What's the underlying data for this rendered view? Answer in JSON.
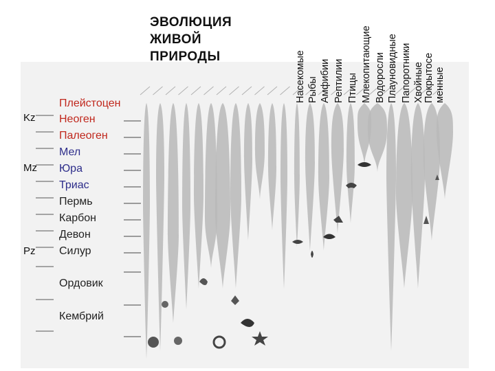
{
  "title": {
    "line1": "ЭВОЛЮЦИЯ",
    "line2": "ЖИВОЙ",
    "line3": "ПРИРОДЫ"
  },
  "eras": [
    {
      "code": "Kz"
    },
    {
      "code": "Mz"
    },
    {
      "code": "Pz"
    }
  ],
  "periods": [
    {
      "name": "Плейстоцен",
      "color": "red"
    },
    {
      "name": "Неоген",
      "color": "red"
    },
    {
      "name": "Палеоген",
      "color": "red"
    },
    {
      "name": "Мел",
      "color": "blue"
    },
    {
      "name": "Юра",
      "color": "blue"
    },
    {
      "name": "Триас",
      "color": "blue"
    },
    {
      "name": "Пермь",
      "color": "dark"
    },
    {
      "name": "Карбон",
      "color": "dark"
    },
    {
      "name": "Девон",
      "color": "dark"
    },
    {
      "name": "Силур",
      "color": "dark"
    },
    {
      "name": "Ордовик",
      "color": "dark"
    },
    {
      "name": "Кембрий",
      "color": "dark"
    }
  ],
  "groups": [
    "Насекомые",
    "Рыбы",
    "Амфибии",
    "Рептилии",
    "Птицы",
    "Млекопитающие",
    "Водоросли",
    "Плауновидные",
    "Папоротники",
    "Хвойные",
    "Покрытосе",
    "менные"
  ],
  "colors": {
    "red": "#c0271c",
    "blue": "#2d2d8a",
    "panel": "#f2f2f2",
    "band": "#b8b8b8"
  },
  "icons": [
    "shell-icon",
    "ammonite-icon",
    "starfish-icon",
    "coral-icon",
    "fish-icon",
    "frog-icon",
    "lizard-icon",
    "bird-icon",
    "mammal-icon",
    "fern-icon",
    "tree-icon",
    "flower-icon"
  ]
}
